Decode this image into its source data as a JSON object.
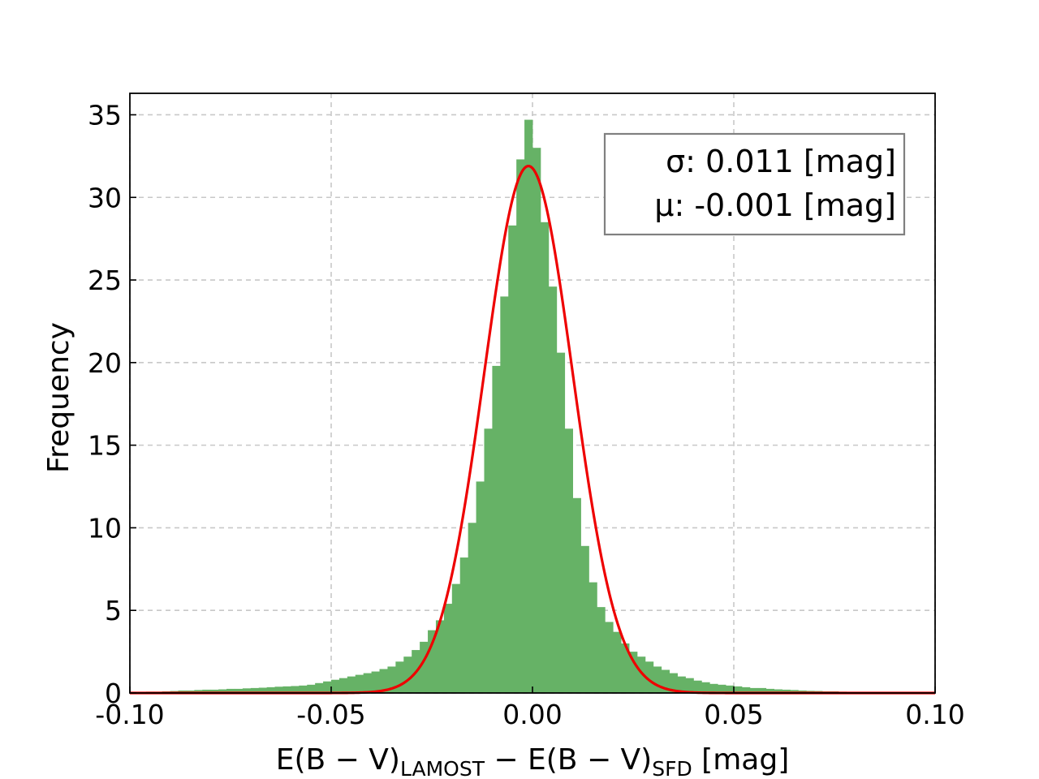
{
  "chart_data": {
    "type": "bar",
    "title": "",
    "xlabel": {
      "part1": "E(B − V)",
      "sub1": "LAMOST",
      "part2": " − E(B − V)",
      "sub2": "SFD",
      "part3": " [mag]"
    },
    "ylabel": "Frequency",
    "xlim": [
      -0.1,
      0.1
    ],
    "ylim": [
      0,
      36.3
    ],
    "grid": true,
    "xticks": [
      -0.1,
      -0.05,
      0.0,
      0.05,
      0.1
    ],
    "xtick_labels": [
      "-0.10",
      "-0.05",
      "0.00",
      "0.05",
      "0.10"
    ],
    "yticks": [
      0,
      5,
      10,
      15,
      20,
      25,
      30,
      35
    ],
    "ytick_labels": [
      "0",
      "5",
      "10",
      "15",
      "20",
      "25",
      "30",
      "35"
    ],
    "bar_color": "#66b266",
    "fit_color": "#ee0000",
    "bin_width": 0.002,
    "bins_left": [
      -0.1,
      -0.098,
      -0.096,
      -0.094,
      -0.092,
      -0.09,
      -0.088,
      -0.086,
      -0.084,
      -0.082,
      -0.08,
      -0.078,
      -0.076,
      -0.074,
      -0.072,
      -0.07,
      -0.068,
      -0.066,
      -0.064,
      -0.062,
      -0.06,
      -0.058,
      -0.056,
      -0.054,
      -0.052,
      -0.05,
      -0.048,
      -0.046,
      -0.044,
      -0.042,
      -0.04,
      -0.038,
      -0.036,
      -0.034,
      -0.032,
      -0.03,
      -0.028,
      -0.026,
      -0.024,
      -0.022,
      -0.02,
      -0.018,
      -0.016,
      -0.014,
      -0.012,
      -0.01,
      -0.008,
      -0.006,
      -0.004,
      -0.002,
      0.0,
      0.002,
      0.004,
      0.006,
      0.008,
      0.01,
      0.012,
      0.014,
      0.016,
      0.018,
      0.02,
      0.022,
      0.024,
      0.026,
      0.028,
      0.03,
      0.032,
      0.034,
      0.036,
      0.038,
      0.04,
      0.042,
      0.044,
      0.046,
      0.048,
      0.05,
      0.052,
      0.054,
      0.056,
      0.058,
      0.06,
      0.062,
      0.064,
      0.066,
      0.068,
      0.07,
      0.072,
      0.074,
      0.076,
      0.078,
      0.08,
      0.082,
      0.084,
      0.086,
      0.088,
      0.09,
      0.092,
      0.094,
      0.096,
      0.098
    ],
    "counts": [
      0.05,
      0.05,
      0.08,
      0.08,
      0.1,
      0.12,
      0.15,
      0.15,
      0.18,
      0.2,
      0.2,
      0.22,
      0.25,
      0.25,
      0.28,
      0.3,
      0.32,
      0.35,
      0.38,
      0.4,
      0.42,
      0.45,
      0.5,
      0.6,
      0.7,
      0.8,
      0.9,
      1.0,
      1.1,
      1.2,
      1.3,
      1.45,
      1.6,
      1.9,
      2.2,
      2.6,
      3.1,
      3.8,
      4.4,
      5.4,
      6.6,
      8.2,
      10.3,
      12.8,
      16.0,
      19.8,
      24.0,
      28.3,
      32.3,
      34.7,
      33.0,
      28.5,
      24.6,
      20.6,
      16.0,
      11.8,
      8.9,
      6.7,
      5.2,
      4.3,
      3.7,
      3.0,
      2.5,
      2.2,
      1.9,
      1.6,
      1.4,
      1.2,
      1.0,
      0.9,
      0.75,
      0.65,
      0.55,
      0.5,
      0.45,
      0.4,
      0.35,
      0.3,
      0.3,
      0.25,
      0.22,
      0.2,
      0.18,
      0.15,
      0.13,
      0.12,
      0.1,
      0.1,
      0.08,
      0.07,
      0.06,
      0.05,
      0.05,
      0.04,
      0.04,
      0.03,
      0.03,
      0.02,
      0.02,
      0.02
    ],
    "fit": {
      "type": "gaussian",
      "mu": -0.001,
      "sigma": 0.011,
      "peak": 31.9
    },
    "legend": {
      "position": "top-right",
      "sigma_line": "σ: 0.011 [mag]",
      "mu_line": "μ: -0.001 [mag]"
    }
  }
}
